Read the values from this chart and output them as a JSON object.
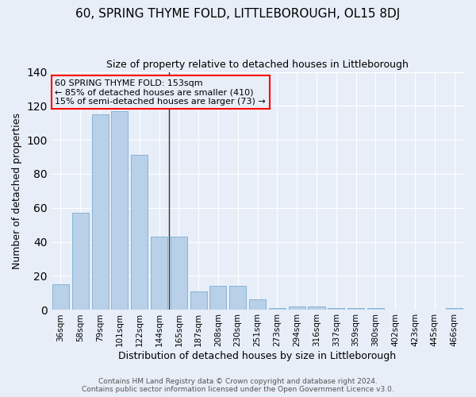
{
  "title": "60, SPRING THYME FOLD, LITTLEBOROUGH, OL15 8DJ",
  "subtitle": "Size of property relative to detached houses in Littleborough",
  "xlabel": "Distribution of detached houses by size in Littleborough",
  "ylabel": "Number of detached properties",
  "categories": [
    "36sqm",
    "58sqm",
    "79sqm",
    "101sqm",
    "122sqm",
    "144sqm",
    "165sqm",
    "187sqm",
    "208sqm",
    "230sqm",
    "251sqm",
    "273sqm",
    "294sqm",
    "316sqm",
    "337sqm",
    "359sqm",
    "380sqm",
    "402sqm",
    "423sqm",
    "445sqm",
    "466sqm"
  ],
  "values": [
    15,
    57,
    115,
    117,
    91,
    43,
    43,
    11,
    14,
    14,
    6,
    1,
    2,
    2,
    1,
    1,
    1,
    0,
    0,
    0,
    1
  ],
  "bar_color": "#b8d0e8",
  "bar_edge_color": "#7aaed4",
  "annotation_text": "60 SPRING THYME FOLD: 153sqm\n← 85% of detached houses are smaller (410)\n15% of semi-detached houses are larger (73) →",
  "footnote": "Contains HM Land Registry data © Crown copyright and database right 2024.\nContains public sector information licensed under the Open Government Licence v3.0.",
  "ylim": [
    0,
    140
  ],
  "yticks": [
    0,
    20,
    40,
    60,
    80,
    100,
    120,
    140
  ],
  "background_color": "#e8eef8",
  "grid_color": "#ffffff",
  "title_fontsize": 11,
  "subtitle_fontsize": 9,
  "ylabel_fontsize": 9,
  "xlabel_fontsize": 9,
  "tick_fontsize": 7.5,
  "annot_fontsize": 8,
  "footnote_fontsize": 6.5,
  "vline_x": 5.5,
  "vline_color": "#333333"
}
